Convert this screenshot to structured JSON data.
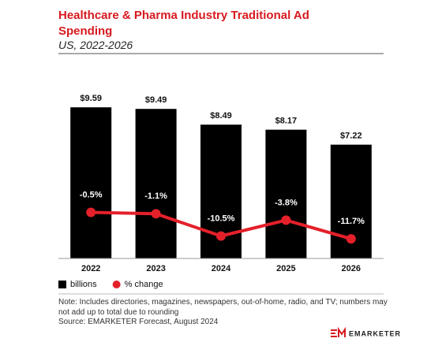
{
  "chart_data": {
    "type": "bar",
    "title": "Healthcare & Pharma Industry Traditional Ad Spending",
    "subtitle": "US, 2022-2026",
    "categories": [
      "2022",
      "2023",
      "2024",
      "2025",
      "2026"
    ],
    "series": [
      {
        "name": "billions",
        "color": "#000000",
        "values": [
          9.59,
          9.49,
          8.49,
          8.17,
          7.22
        ],
        "value_labels": [
          "$9.59",
          "$9.49",
          "$8.49",
          "$8.17",
          "$7.22"
        ]
      },
      {
        "name": "% change",
        "type": "line",
        "axis": "y2",
        "color": "#e4202a",
        "values": [
          -0.5,
          -1.1,
          -10.5,
          -3.8,
          -11.7
        ],
        "value_labels": [
          "-0.5%",
          "-1.1%",
          "-10.5%",
          "-3.8%",
          "-11.7%"
        ]
      }
    ],
    "ylim": [
      0,
      12
    ],
    "y2lim": [
      -20,
      60
    ],
    "legend": "bottom-left",
    "note": "Note: Includes directories, magazines, newspapers, out-of-home, radio, and TV; numbers may not add up to total due to rounding",
    "source": "Source: EMARKETER Forecast, August 2024",
    "logo": "EMARKETER"
  }
}
